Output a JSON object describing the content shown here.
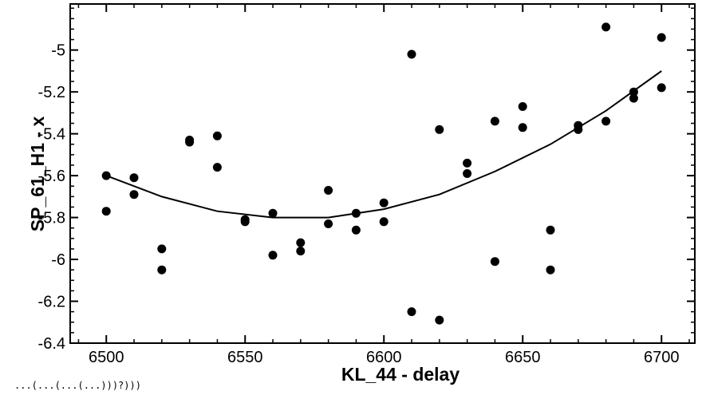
{
  "chart_data": {
    "type": "scatter",
    "xlabel": "KL_44 - delay",
    "ylabel": "SP_61_H1 - x",
    "xlim": [
      6487,
      6712
    ],
    "ylim": [
      -6.4,
      -4.78
    ],
    "x_ticks": [
      6500,
      6550,
      6600,
      6650,
      6700
    ],
    "y_ticks": [
      -6.4,
      -6.2,
      -6,
      -5.8,
      -5.6,
      -5.4,
      -5.2,
      -5
    ],
    "grid": false,
    "points": [
      {
        "x": 6500,
        "y": -5.6
      },
      {
        "x": 6500,
        "y": -5.77
      },
      {
        "x": 6510,
        "y": -5.61
      },
      {
        "x": 6510,
        "y": -5.69
      },
      {
        "x": 6520,
        "y": -5.95
      },
      {
        "x": 6520,
        "y": -6.05
      },
      {
        "x": 6530,
        "y": -5.43
      },
      {
        "x": 6530,
        "y": -5.44
      },
      {
        "x": 6540,
        "y": -5.41
      },
      {
        "x": 6540,
        "y": -5.56
      },
      {
        "x": 6550,
        "y": -5.81
      },
      {
        "x": 6550,
        "y": -5.82
      },
      {
        "x": 6560,
        "y": -5.78
      },
      {
        "x": 6560,
        "y": -5.98
      },
      {
        "x": 6570,
        "y": -5.92
      },
      {
        "x": 6570,
        "y": -5.96
      },
      {
        "x": 6580,
        "y": -5.67
      },
      {
        "x": 6580,
        "y": -5.83
      },
      {
        "x": 6590,
        "y": -5.78
      },
      {
        "x": 6590,
        "y": -5.86
      },
      {
        "x": 6600,
        "y": -5.73
      },
      {
        "x": 6600,
        "y": -5.82
      },
      {
        "x": 6610,
        "y": -5.02
      },
      {
        "x": 6610,
        "y": -6.25
      },
      {
        "x": 6620,
        "y": -5.38
      },
      {
        "x": 6620,
        "y": -6.29
      },
      {
        "x": 6630,
        "y": -5.54
      },
      {
        "x": 6630,
        "y": -5.59
      },
      {
        "x": 6640,
        "y": -5.34
      },
      {
        "x": 6640,
        "y": -6.01
      },
      {
        "x": 6650,
        "y": -5.27
      },
      {
        "x": 6650,
        "y": -5.37
      },
      {
        "x": 6660,
        "y": -5.86
      },
      {
        "x": 6660,
        "y": -6.05
      },
      {
        "x": 6670,
        "y": -5.36
      },
      {
        "x": 6670,
        "y": -5.38
      },
      {
        "x": 6680,
        "y": -4.89
      },
      {
        "x": 6680,
        "y": -5.34
      },
      {
        "x": 6690,
        "y": -5.2
      },
      {
        "x": 6690,
        "y": -5.23
      },
      {
        "x": 6700,
        "y": -4.94
      },
      {
        "x": 6700,
        "y": -5.18
      }
    ],
    "fit_curve": {
      "type": "quadratic",
      "x": [
        6500,
        6520,
        6540,
        6560,
        6580,
        6600,
        6620,
        6640,
        6660,
        6680,
        6700
      ],
      "y": [
        -5.6,
        -5.7,
        -5.77,
        -5.8,
        -5.8,
        -5.76,
        -5.69,
        -5.58,
        -5.45,
        -5.29,
        -5.1
      ]
    }
  },
  "footer": {
    "text": "...(...(...(...)))?)))"
  }
}
